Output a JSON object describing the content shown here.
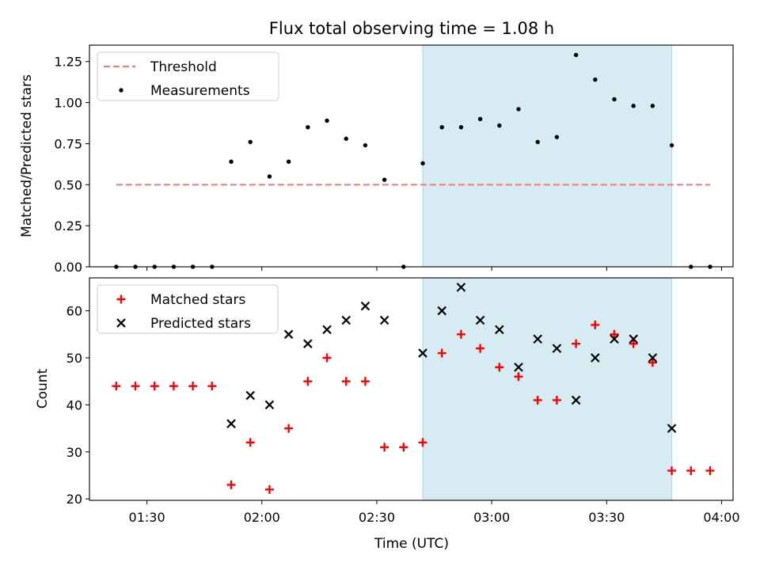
{
  "chart_data": [
    {
      "type": "scatter",
      "title": "Flux total observing time = 1.08 h",
      "ylabel": "Matched/Predicted stars",
      "xlim": [
        "01:15",
        "04:03"
      ],
      "ylim": [
        0,
        1.35
      ],
      "yticks": [
        0.0,
        0.25,
        0.5,
        0.75,
        1.0,
        1.25
      ],
      "ytick_labels": [
        "0.00",
        "0.25",
        "0.50",
        "0.75",
        "1.00",
        "1.25"
      ],
      "grid": false,
      "legend_position": "top-left",
      "shaded_span": {
        "x": [
          "02:42",
          "03:47"
        ],
        "color": "#add8e6"
      },
      "series": [
        {
          "name": "Threshold",
          "kind": "dashed-line",
          "color": "#f08080",
          "x": [
            "01:22",
            "03:57"
          ],
          "y": [
            0.5,
            0.5
          ]
        },
        {
          "name": "Measurements",
          "kind": "dot",
          "color": "#000000",
          "x": [
            "01:22",
            "01:27",
            "01:32",
            "01:37",
            "01:42",
            "01:47",
            "01:52",
            "01:57",
            "02:02",
            "02:07",
            "02:12",
            "02:17",
            "02:22",
            "02:27",
            "02:32",
            "02:37",
            "02:42",
            "02:47",
            "02:52",
            "02:57",
            "03:02",
            "03:07",
            "03:12",
            "03:17",
            "03:22",
            "03:27",
            "03:32",
            "03:37",
            "03:42",
            "03:47",
            "03:52",
            "03:57"
          ],
          "y": [
            0,
            0,
            0,
            0,
            0,
            0,
            0.64,
            0.76,
            0.55,
            0.64,
            0.85,
            0.89,
            0.78,
            0.74,
            0.53,
            0,
            0.63,
            0.85,
            0.85,
            0.9,
            0.86,
            0.96,
            0.76,
            0.79,
            1.29,
            1.14,
            1.02,
            0.98,
            0.98,
            0.74,
            0,
            0
          ]
        }
      ]
    },
    {
      "type": "scatter",
      "xlabel": "Time (UTC)",
      "ylabel": "Count",
      "xlim": [
        "01:15",
        "04:03"
      ],
      "ylim": [
        19.7,
        67
      ],
      "xticks": [
        "01:30",
        "02:00",
        "02:30",
        "03:00",
        "03:30",
        "04:00"
      ],
      "yticks": [
        20,
        30,
        40,
        50,
        60
      ],
      "ytick_labels": [
        "20",
        "30",
        "40",
        "50",
        "60"
      ],
      "grid": false,
      "legend_position": "top-left",
      "shaded_span": {
        "x": [
          "02:42",
          "03:47"
        ],
        "color": "#add8e6"
      },
      "series": [
        {
          "name": "Matched stars",
          "marker": "plus",
          "color": "#ff0000",
          "x": [
            "01:22",
            "01:27",
            "01:32",
            "01:37",
            "01:42",
            "01:47",
            "01:52",
            "01:57",
            "02:02",
            "02:07",
            "02:12",
            "02:17",
            "02:22",
            "02:27",
            "02:32",
            "02:37",
            "02:42",
            "02:47",
            "02:52",
            "02:57",
            "03:02",
            "03:07",
            "03:12",
            "03:17",
            "03:22",
            "03:27",
            "03:32",
            "03:37",
            "03:42",
            "03:47",
            "03:52",
            "03:57"
          ],
          "y": [
            44,
            44,
            44,
            44,
            44,
            44,
            23,
            32,
            22,
            35,
            45,
            50,
            45,
            45,
            31,
            31,
            32,
            51,
            55,
            52,
            48,
            46,
            41,
            41,
            53,
            57,
            55,
            53,
            49,
            26,
            26,
            26
          ]
        },
        {
          "name": "Predicted stars",
          "marker": "x",
          "color": "#000000",
          "x": [
            "01:52",
            "01:57",
            "02:02",
            "02:07",
            "02:12",
            "02:17",
            "02:22",
            "02:27",
            "02:32",
            "02:42",
            "02:47",
            "02:52",
            "02:57",
            "03:02",
            "03:07",
            "03:12",
            "03:17",
            "03:22",
            "03:27",
            "03:32",
            "03:37",
            "03:42",
            "03:47"
          ],
          "y": [
            36,
            42,
            40,
            55,
            53,
            56,
            58,
            61,
            58,
            51,
            60,
            65,
            58,
            56,
            48,
            54,
            52,
            41,
            50,
            54,
            54,
            50,
            35
          ]
        }
      ]
    }
  ]
}
